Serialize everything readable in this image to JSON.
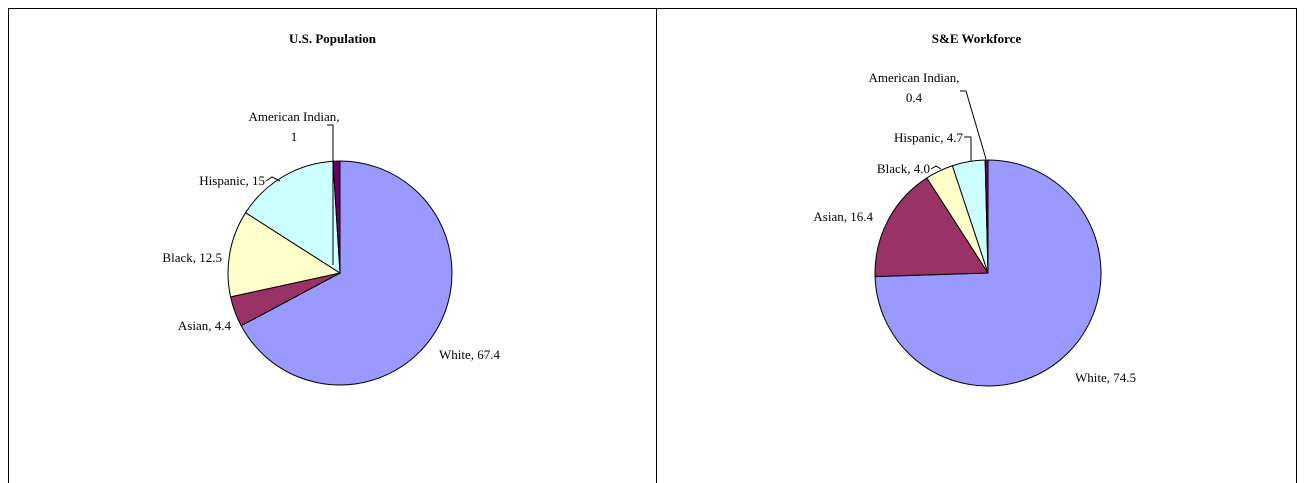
{
  "chart_data": [
    {
      "type": "pie",
      "title": "U.S. Population",
      "slices": [
        {
          "label": "White",
          "value": 67.4,
          "value_text": "67.4",
          "color": "#9999FF"
        },
        {
          "label": "Asian",
          "value": 4.4,
          "value_text": "4.4",
          "color": "#993366"
        },
        {
          "label": "Black",
          "value": 12.5,
          "value_text": "12.5",
          "color": "#FFFFCC"
        },
        {
          "label": "Hispanic",
          "value": 15,
          "value_text": "15",
          "color": "#CCFFFF"
        },
        {
          "label": "American Indian",
          "value": 1,
          "value_text": "1",
          "color": "#660066"
        }
      ]
    },
    {
      "type": "pie",
      "title": "S&E Workforce",
      "slices": [
        {
          "label": "White",
          "value": 74.5,
          "value_text": "74.5",
          "color": "#9999FF"
        },
        {
          "label": "Asian",
          "value": 16.4,
          "value_text": "16.4",
          "color": "#993366"
        },
        {
          "label": "Black",
          "value": 4.0,
          "value_text": "4.0",
          "color": "#FFFFCC"
        },
        {
          "label": "Hispanic",
          "value": 4.7,
          "value_text": "4.7",
          "color": "#CCFFFF"
        },
        {
          "label": "American Indian",
          "value": 0.4,
          "value_text": "0.4",
          "color": "#660066"
        }
      ]
    }
  ]
}
